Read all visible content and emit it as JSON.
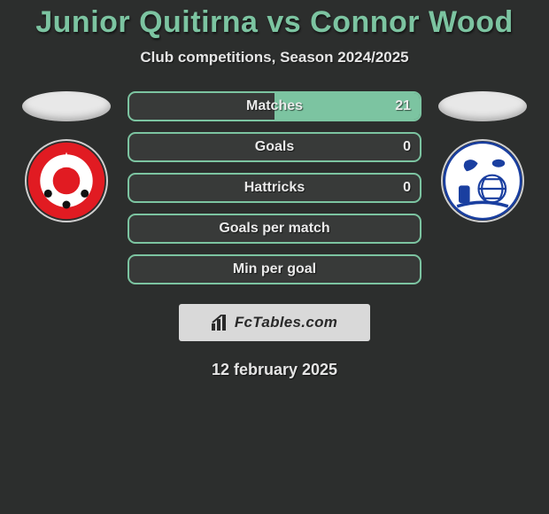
{
  "title": "Junior Quitirna vs Connor Wood",
  "subtitle": "Club competitions, Season 2024/2025",
  "date": "12 february 2025",
  "brand": "FcTables.com",
  "colors": {
    "accent": "#7cc4a1",
    "row_bg": "#383a39",
    "page_bg": "#2c2e2d",
    "brand_bg": "#d9d9d9"
  },
  "left_player": {
    "name": "Junior Quitirna",
    "club": "Fleetwood Town",
    "crest_colors": {
      "outer": "#e11b22",
      "inner": "#ffffff",
      "ball": "#111111"
    }
  },
  "right_player": {
    "name": "Connor Wood",
    "club": "Tranmere Rovers",
    "crest_colors": {
      "bg": "#ffffff",
      "ink": "#1a3fa0"
    }
  },
  "rows": [
    {
      "label": "Matches",
      "left": "",
      "right": "21",
      "left_pct": 0,
      "right_pct": 100
    },
    {
      "label": "Goals",
      "left": "",
      "right": "0",
      "left_pct": 0,
      "right_pct": 0
    },
    {
      "label": "Hattricks",
      "left": "",
      "right": "0",
      "left_pct": 0,
      "right_pct": 0
    },
    {
      "label": "Goals per match",
      "left": "",
      "right": "",
      "left_pct": 0,
      "right_pct": 0
    },
    {
      "label": "Min per goal",
      "left": "",
      "right": "",
      "left_pct": 0,
      "right_pct": 0
    }
  ]
}
